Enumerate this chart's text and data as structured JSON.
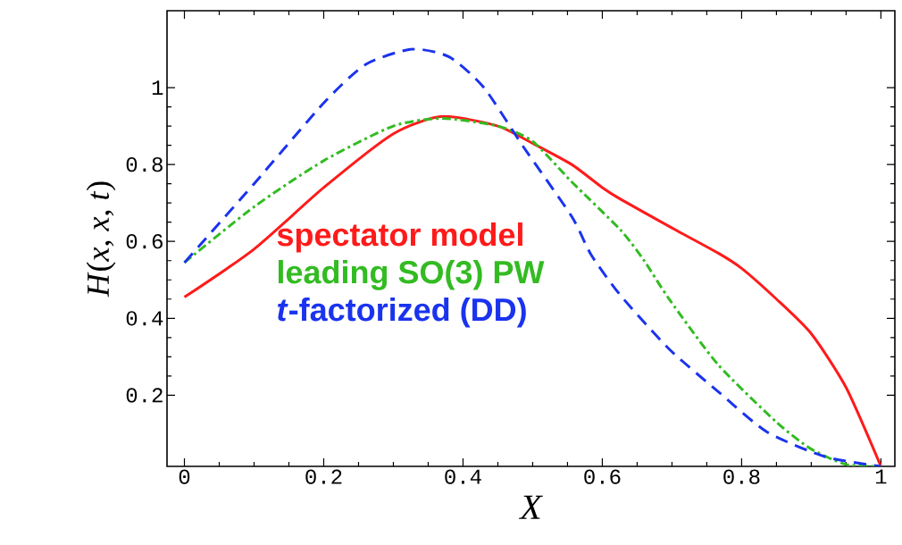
{
  "chart_data": {
    "type": "line",
    "xlabel": "X",
    "ylabel": "*H*(*x*, *x*, *t*)",
    "xlim": [
      -0.025,
      1.02
    ],
    "ylim": [
      0.015,
      1.2
    ],
    "xticks": [
      0,
      0.2,
      0.4,
      0.6,
      0.8,
      1
    ],
    "yticks": [
      0.2,
      0.4,
      0.6,
      0.8,
      1
    ],
    "legend": "left",
    "marker": "none",
    "series": [
      {
        "name": "spectator model",
        "color": "#ff1a1a",
        "line_style": "solid",
        "x": [
          0,
          0.1,
          0.2,
          0.3,
          0.37,
          0.45,
          0.5,
          0.556,
          0.6,
          0.626,
          0.7,
          0.766,
          0.8,
          0.85,
          0.9,
          0.95,
          1
        ],
        "values": [
          0.455,
          0.58,
          0.74,
          0.88,
          0.925,
          0.9,
          0.855,
          0.8,
          0.74,
          0.71,
          0.635,
          0.57,
          0.53,
          0.45,
          0.36,
          0.22,
          0.015
        ]
      },
      {
        "name": "leading SO(3) PW",
        "color": "#33bb22",
        "line_style": "dashdot",
        "x": [
          0,
          0.1,
          0.2,
          0.3,
          0.37,
          0.45,
          0.5,
          0.556,
          0.626,
          0.66,
          0.696,
          0.766,
          0.85,
          0.9,
          0.95,
          1
        ],
        "values": [
          0.545,
          0.69,
          0.81,
          0.9,
          0.92,
          0.9,
          0.86,
          0.755,
          0.63,
          0.55,
          0.45,
          0.28,
          0.13,
          0.06,
          0.02,
          0.015
        ]
      },
      {
        "name": "*t*-factorized (DD)",
        "color": "#1a33ee",
        "line_style": "dashed",
        "x": [
          0,
          0.1,
          0.2,
          0.26,
          0.326,
          0.38,
          0.43,
          0.487,
          0.556,
          0.584,
          0.626,
          0.696,
          0.766,
          0.836,
          0.92,
          1
        ],
        "values": [
          0.545,
          0.75,
          0.96,
          1.06,
          1.1,
          1.08,
          1.0,
          0.845,
          0.665,
          0.565,
          0.46,
          0.32,
          0.21,
          0.105,
          0.04,
          0.015
        ]
      }
    ]
  }
}
